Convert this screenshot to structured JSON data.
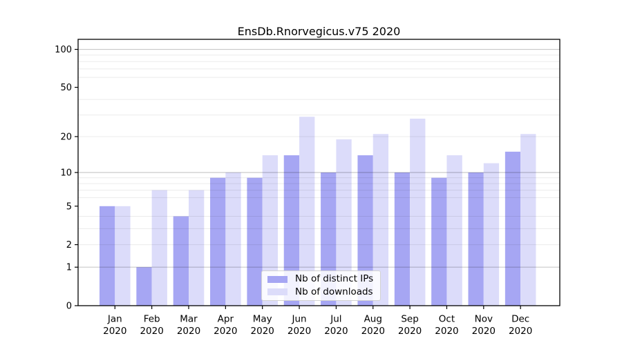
{
  "chart_data": {
    "type": "bar",
    "title": "EnsDb.Rnorvegicus.v75 2020",
    "categories": [
      "Jan 2020",
      "Feb 2020",
      "Mar 2020",
      "Apr 2020",
      "May 2020",
      "Jun 2020",
      "Jul 2020",
      "Aug 2020",
      "Sep 2020",
      "Oct 2020",
      "Nov 2020",
      "Dec 2020"
    ],
    "series": [
      {
        "name": "Nb of distinct IPs",
        "color": "#a6a6f3",
        "values": [
          5,
          1,
          4,
          9,
          9,
          14,
          10,
          14,
          10,
          9,
          10,
          15
        ]
      },
      {
        "name": "Nb of downloads",
        "color": "#dcdcfa",
        "values": [
          5,
          7,
          7,
          10,
          14,
          29,
          19,
          21,
          28,
          14,
          12,
          21
        ]
      }
    ],
    "xlabel": "",
    "ylabel": "",
    "yscale": "log1p",
    "ylim": [
      0,
      120
    ],
    "yticks": [
      0,
      1,
      2,
      5,
      10,
      20,
      50,
      100
    ],
    "grid_major": [
      1,
      10,
      100
    ],
    "grid_minor": [
      2,
      3,
      4,
      6,
      7,
      8,
      9,
      20,
      30,
      40,
      60,
      70,
      80,
      90
    ],
    "grid": "on",
    "legend_position": "lower center",
    "colors": {
      "axis": "#000000",
      "tick_text": "#000000",
      "grid_major": "rgba(0,0,0,0.21)",
      "grid_minor": "rgba(0,0,0,0.08)"
    }
  }
}
